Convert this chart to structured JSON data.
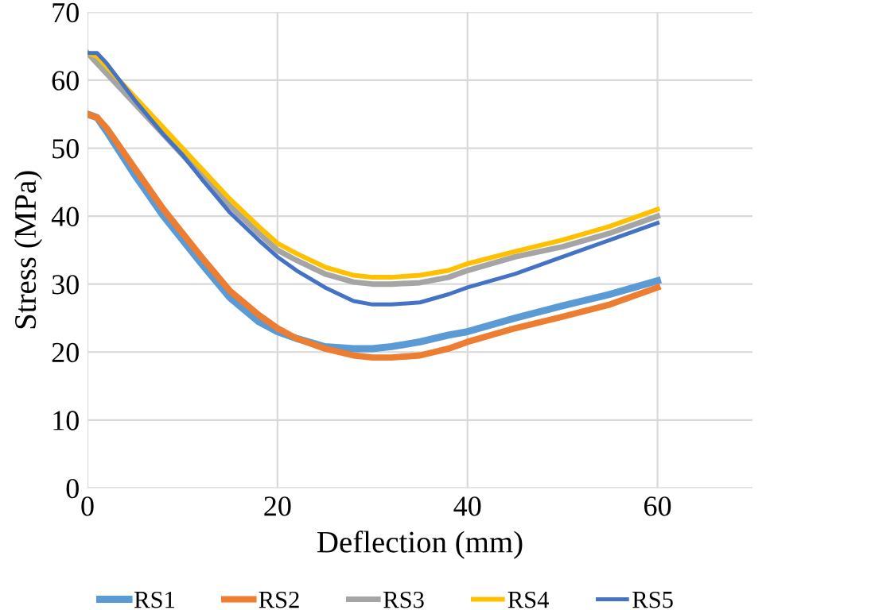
{
  "chart_data": {
    "type": "line",
    "xlabel": "Deflection (mm)",
    "ylabel": "Stress (MPa)",
    "x": [
      0,
      1,
      2,
      5,
      8,
      10,
      12,
      15,
      18,
      20,
      22,
      25,
      28,
      30,
      32,
      35,
      38,
      40,
      45,
      50,
      55,
      60
    ],
    "series": [
      {
        "name": "RS1",
        "color": "#5b9bd5",
        "values": [
          55,
          54.5,
          52.5,
          46,
          40,
          36.5,
          33,
          28,
          24.5,
          23,
          22,
          20.8,
          20.5,
          20.5,
          20.8,
          21.5,
          22.5,
          23,
          25,
          26.8,
          28.5,
          30.5
        ]
      },
      {
        "name": "RS2",
        "color": "#ed7d31",
        "values": [
          55,
          54.5,
          53,
          47,
          41,
          37.5,
          34,
          29,
          25.5,
          23.5,
          22,
          20.5,
          19.5,
          19.2,
          19.2,
          19.5,
          20.5,
          21.5,
          23.5,
          25.2,
          27,
          29.5
        ]
      },
      {
        "name": "RS3",
        "color": "#a5a5a5",
        "values": [
          64,
          62.5,
          61,
          56.5,
          52,
          49,
          46,
          41.5,
          37.5,
          35,
          33.5,
          31.5,
          30.3,
          30,
          30,
          30.2,
          31,
          32,
          34,
          35.5,
          37.5,
          40
        ]
      },
      {
        "name": "RS4",
        "color": "#ffc000",
        "values": [
          64,
          63.5,
          62,
          57.5,
          53,
          50,
          47,
          42.5,
          38.5,
          36,
          34.5,
          32.5,
          31.3,
          31,
          31,
          31.3,
          32,
          33,
          34.8,
          36.5,
          38.5,
          41
        ]
      },
      {
        "name": "RS5",
        "color": "#4472c4",
        "values": [
          64,
          64,
          62.5,
          57,
          52,
          49,
          45.5,
          40.5,
          36.5,
          34,
          32,
          29.5,
          27.5,
          27,
          27,
          27.3,
          28.5,
          29.5,
          31.5,
          34,
          36.5,
          39
        ]
      }
    ],
    "xlim": [
      0,
      70
    ],
    "xticks": [
      0,
      20,
      40,
      60
    ],
    "ylim": [
      0,
      70
    ],
    "yticks": [
      0,
      10,
      20,
      30,
      40,
      50,
      60,
      70
    ],
    "grid": true,
    "legend": "bottom",
    "marker": "none",
    "line_style": "solid"
  }
}
